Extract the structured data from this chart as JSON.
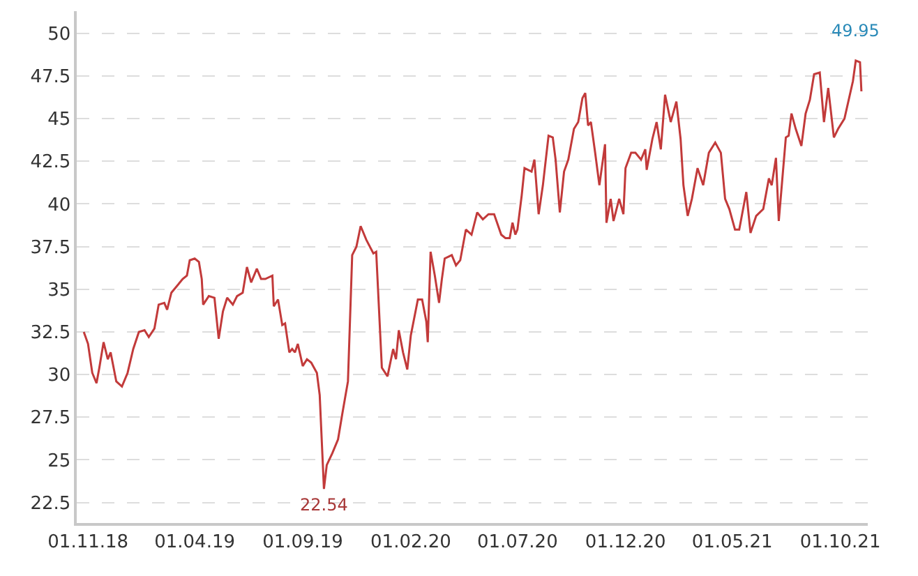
{
  "chart_data": {
    "type": "line",
    "line_style": "solid",
    "marker": "none",
    "grid": "y",
    "legend": false,
    "xlim": [
      "2018-10-16",
      "2021-11-09"
    ],
    "ylim": [
      21.3,
      51.3
    ],
    "xticks": [
      {
        "value": "2018-11-01",
        "label": "01.11.18"
      },
      {
        "value": "2019-04-01",
        "label": "01.04.19"
      },
      {
        "value": "2019-09-01",
        "label": "01.09.19"
      },
      {
        "value": "2020-02-01",
        "label": "01.02.20"
      },
      {
        "value": "2020-07-01",
        "label": "01.07.20"
      },
      {
        "value": "2020-12-01",
        "label": "01.12.20"
      },
      {
        "value": "2021-05-01",
        "label": "01.05.21"
      },
      {
        "value": "2021-10-01",
        "label": "01.10.21"
      }
    ],
    "yticks": [
      22.5,
      25,
      27.5,
      30,
      32.5,
      35,
      37.5,
      40,
      42.5,
      45,
      47.5,
      50
    ],
    "annotations": [
      "22.54",
      "49.95"
    ],
    "series": [
      {
        "color": "#c23a3a",
        "x": [
          "2018-10-26",
          "2018-11-01",
          "2018-11-07",
          "2018-11-13",
          "2018-11-17",
          "2018-11-23",
          "2018-11-29",
          "2018-12-03",
          "2018-12-11",
          "2018-12-19",
          "2018-12-27",
          "2019-01-04",
          "2019-01-12",
          "2019-01-20",
          "2019-01-26",
          "2019-02-03",
          "2019-02-09",
          "2019-02-17",
          "2019-02-21",
          "2019-02-27",
          "2019-03-07",
          "2019-03-15",
          "2019-03-21",
          "2019-03-25",
          "2019-04-01",
          "2019-04-07",
          "2019-04-11",
          "2019-04-13",
          "2019-04-21",
          "2019-04-29",
          "2019-05-05",
          "2019-05-11",
          "2019-05-17",
          "2019-05-25",
          "2019-05-31",
          "2019-06-08",
          "2019-06-14",
          "2019-06-20",
          "2019-06-28",
          "2019-07-04",
          "2019-07-10",
          "2019-07-20",
          "2019-07-22",
          "2019-07-28",
          "2019-08-03",
          "2019-08-07",
          "2019-08-13",
          "2019-08-17",
          "2019-08-21",
          "2019-08-25",
          "2019-09-01",
          "2019-09-07",
          "2019-09-13",
          "2019-09-21",
          "2019-09-25",
          "2019-10-01",
          "2019-10-05",
          "2019-10-13",
          "2019-10-21",
          "2019-10-27",
          "2019-11-04",
          "2019-11-10",
          "2019-11-16",
          "2019-11-22",
          "2019-11-30",
          "2019-12-10",
          "2019-12-14",
          "2019-12-22",
          "2019-12-30",
          "2020-01-07",
          "2020-01-11",
          "2020-01-15",
          "2020-01-21",
          "2020-01-27",
          "2020-02-01",
          "2020-02-11",
          "2020-02-17",
          "2020-02-23",
          "2020-02-25",
          "2020-02-29",
          "2020-03-06",
          "2020-03-12",
          "2020-03-16",
          "2020-03-20",
          "2020-03-30",
          "2020-04-05",
          "2020-04-11",
          "2020-04-19",
          "2020-04-27",
          "2020-05-05",
          "2020-05-13",
          "2020-05-21",
          "2020-05-29",
          "2020-06-08",
          "2020-06-14",
          "2020-06-20",
          "2020-06-24",
          "2020-06-28",
          "2020-07-01",
          "2020-07-07",
          "2020-07-11",
          "2020-07-21",
          "2020-07-25",
          "2020-07-31",
          "2020-08-06",
          "2020-08-14",
          "2020-08-20",
          "2020-08-24",
          "2020-08-30",
          "2020-09-05",
          "2020-09-11",
          "2020-09-19",
          "2020-09-25",
          "2020-10-01",
          "2020-10-05",
          "2020-10-09",
          "2020-10-13",
          "2020-10-19",
          "2020-10-25",
          "2020-11-02",
          "2020-11-04",
          "2020-11-10",
          "2020-11-14",
          "2020-11-22",
          "2020-11-28",
          "2020-12-01",
          "2020-12-09",
          "2020-12-15",
          "2020-12-23",
          "2020-12-29",
          "2020-12-31",
          "2021-01-08",
          "2021-01-14",
          "2021-01-20",
          "2021-01-26",
          "2021-02-03",
          "2021-02-11",
          "2021-02-17",
          "2021-02-21",
          "2021-02-27",
          "2021-03-05",
          "2021-03-13",
          "2021-03-21",
          "2021-03-29",
          "2021-04-07",
          "2021-04-15",
          "2021-04-21",
          "2021-04-27",
          "2021-05-05",
          "2021-05-11",
          "2021-05-21",
          "2021-05-27",
          "2021-06-04",
          "2021-06-14",
          "2021-06-22",
          "2021-06-26",
          "2021-07-02",
          "2021-07-06",
          "2021-07-16",
          "2021-07-20",
          "2021-07-24",
          "2021-07-30",
          "2021-08-07",
          "2021-08-13",
          "2021-08-19",
          "2021-08-25",
          "2021-09-02",
          "2021-09-08",
          "2021-09-14",
          "2021-09-22",
          "2021-09-28",
          "2021-10-07",
          "2021-10-19",
          "2021-10-23",
          "2021-10-29",
          "2021-10-31"
        ],
        "values": [
          32.5,
          31.8,
          30.1,
          29.5,
          30.4,
          31.9,
          30.9,
          31.3,
          29.6,
          29.3,
          30.1,
          31.5,
          32.5,
          32.6,
          32.2,
          32.7,
          34.1,
          34.2,
          33.8,
          34.8,
          35.2,
          35.6,
          35.8,
          36.7,
          36.8,
          36.6,
          35.6,
          34.1,
          34.6,
          34.5,
          32.1,
          33.7,
          34.5,
          34.1,
          34.6,
          34.8,
          36.3,
          35.4,
          36.2,
          35.6,
          35.6,
          35.8,
          34.0,
          34.4,
          32.9,
          33.0,
          31.3,
          31.5,
          31.3,
          31.8,
          30.5,
          30.9,
          30.7,
          30.1,
          28.8,
          23.3,
          24.7,
          25.4,
          26.2,
          27.7,
          29.6,
          37.0,
          37.5,
          38.7,
          37.9,
          37.1,
          37.2,
          30.4,
          29.9,
          31.5,
          30.9,
          32.6,
          31.3,
          30.3,
          32.3,
          34.4,
          34.4,
          33.1,
          31.9,
          37.2,
          35.8,
          34.2,
          35.6,
          36.8,
          37.0,
          36.4,
          36.7,
          38.5,
          38.2,
          39.5,
          39.1,
          39.4,
          39.4,
          38.2,
          38.0,
          38.0,
          38.9,
          38.2,
          38.5,
          40.5,
          42.1,
          41.9,
          42.6,
          39.4,
          41.1,
          44.0,
          43.9,
          42.6,
          39.5,
          41.9,
          42.6,
          44.4,
          44.8,
          46.2,
          46.5,
          44.6,
          44.8,
          43.0,
          41.1,
          43.5,
          38.9,
          40.3,
          39.0,
          40.3,
          39.4,
          42.1,
          43.0,
          43.0,
          42.6,
          43.2,
          42.0,
          43.8,
          44.8,
          43.2,
          46.4,
          44.8,
          46.0,
          43.8,
          41.1,
          39.3,
          40.3,
          42.1,
          41.1,
          43.0,
          43.6,
          43.0,
          40.3,
          39.7,
          38.5,
          38.5,
          40.7,
          38.3,
          39.3,
          39.7,
          41.5,
          41.1,
          42.7,
          39.0,
          43.9,
          44.0,
          45.3,
          44.4,
          43.4,
          45.3,
          46.1,
          47.6,
          47.7,
          44.8,
          46.8,
          43.9,
          44.4,
          45.0,
          47.2,
          48.4,
          48.3,
          46.6
        ]
      }
    ]
  }
}
